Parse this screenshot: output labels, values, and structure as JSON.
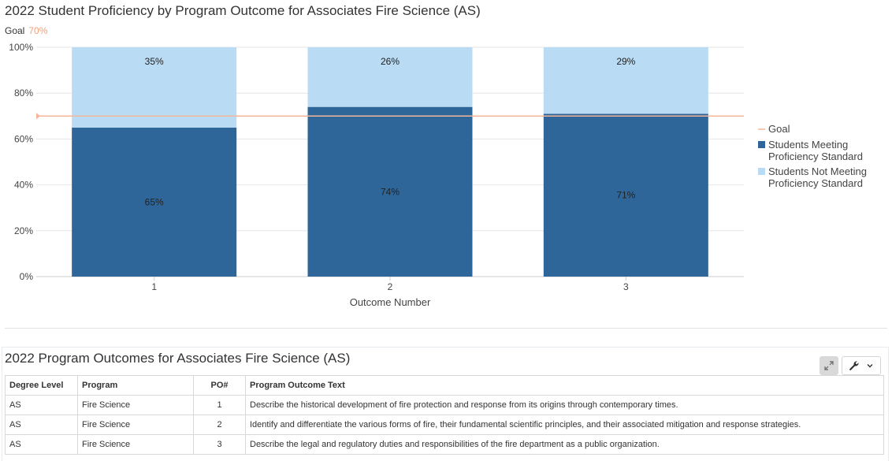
{
  "chart": {
    "title": "2022 Student Proficiency by Program Outcome for Associates Fire Science (AS)",
    "goal_label": "Goal",
    "goal_value_text": "70%"
  },
  "chart_data": {
    "type": "bar",
    "stacked": true,
    "categories": [
      "1",
      "2",
      "3"
    ],
    "series": [
      {
        "name": "Students Meeting Proficiency Standard",
        "values": [
          65,
          74,
          71
        ],
        "labels": [
          "65%",
          "74%",
          "71%"
        ],
        "color": "#2f6699"
      },
      {
        "name": "Students Not Meeting Proficiency Standard",
        "values": [
          35,
          26,
          29
        ],
        "labels": [
          "35%",
          "26%",
          "29%"
        ],
        "color": "#b9dbf4"
      }
    ],
    "goal": {
      "name": "Goal",
      "value": 70,
      "color": "#f4b69a"
    },
    "xlabel": "Outcome Number",
    "ylabel": "",
    "ylim": [
      0,
      100
    ],
    "yticks": [
      0,
      20,
      40,
      60,
      80,
      100
    ],
    "ytick_labels": [
      "0%",
      "20%",
      "40%",
      "60%",
      "80%",
      "100%"
    ],
    "legend": [
      {
        "lines": [
          "Goal"
        ],
        "kind": "line",
        "color": "#f4b69a"
      },
      {
        "lines": [
          "Students Meeting",
          "Proficiency Standard"
        ],
        "kind": "box",
        "color": "#2f6699"
      },
      {
        "lines": [
          "Students Not Meeting",
          "Proficiency Standard"
        ],
        "kind": "box",
        "color": "#b9dbf4"
      }
    ],
    "legend_position": "right",
    "grid": true
  },
  "table": {
    "title": "2022 Program Outcomes for Associates Fire Science (AS)",
    "expand_icon": "expand-icon",
    "tools_icon": "wrench-icon",
    "headers": [
      "Degree Level",
      "Program",
      "PO#",
      "Program Outcome Text"
    ],
    "rows": [
      [
        "AS",
        "Fire Science",
        "1",
        "Describe the historical development of fire protection and response from its origins through contemporary times."
      ],
      [
        "AS",
        "Fire Science",
        "2",
        "Identify and differentiate the various forms of fire, their fundamental scientific principles, and their associated mitigation and response strategies."
      ],
      [
        "AS",
        "Fire Science",
        "3",
        "Describe the legal and regulatory duties and responsibilities of the fire department as a public organization."
      ]
    ]
  }
}
